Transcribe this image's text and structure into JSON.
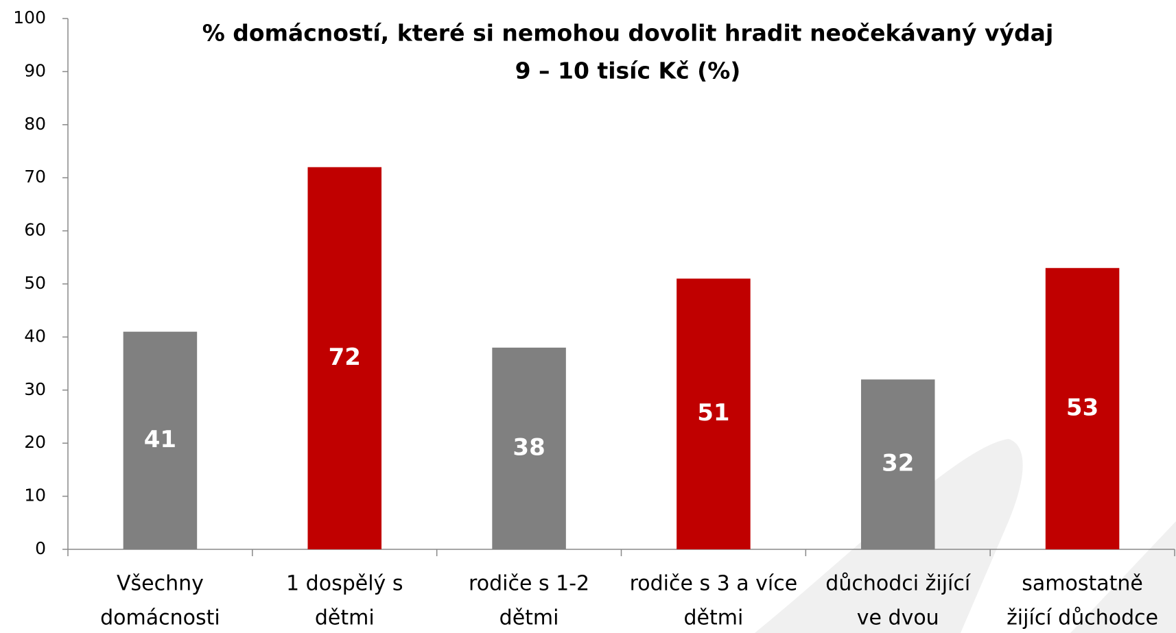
{
  "chart_data": {
    "type": "bar",
    "title": [
      "% domácností, které si nemohou dovolit hradit neočekávaný výdaj",
      "9 – 10 tisíc Kč (%)"
    ],
    "categories": [
      [
        "Všechny",
        "domácnosti"
      ],
      [
        "1 dospělý s",
        "dětmi"
      ],
      [
        "rodiče s 1-2",
        "dětmi"
      ],
      [
        "rodiče s 3 a více",
        "dětmi"
      ],
      [
        "důchodci žijící",
        "ve dvou"
      ],
      [
        "samostatně",
        "žijící důchodce"
      ]
    ],
    "values": [
      41,
      72,
      38,
      51,
      32,
      53
    ],
    "colors": [
      "#808080",
      "#c00000",
      "#808080",
      "#c00000",
      "#808080",
      "#c00000"
    ],
    "ylim": [
      0,
      100
    ],
    "yticks": [
      0,
      10,
      20,
      30,
      40,
      50,
      60,
      70,
      80,
      90,
      100
    ],
    "grid": false
  }
}
